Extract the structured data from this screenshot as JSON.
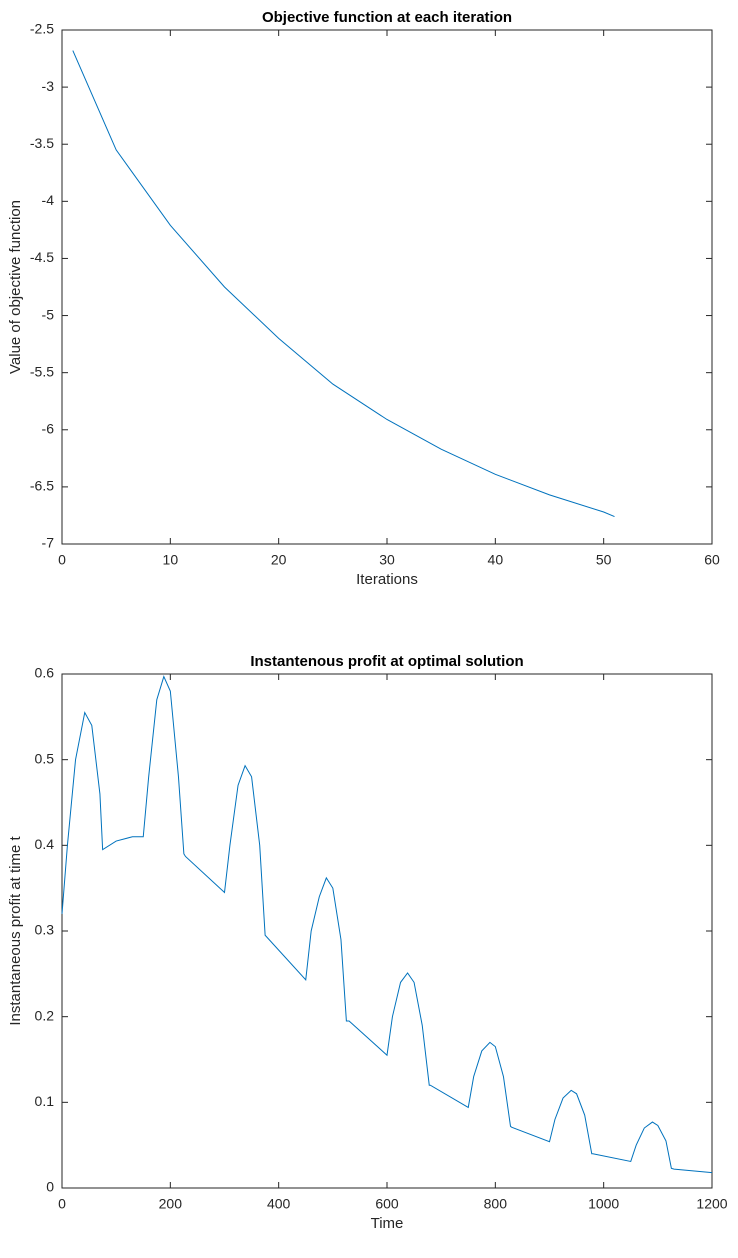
{
  "chart_data": [
    {
      "type": "line",
      "title": "Objective function at each iteration",
      "x_label": "Iterations",
      "y_label": "Value of objective function",
      "x": [
        1,
        5,
        10,
        15,
        20,
        25,
        30,
        35,
        40,
        45,
        50,
        51
      ],
      "values": [
        -2.68,
        -3.55,
        -4.21,
        -4.75,
        -5.2,
        -5.6,
        -5.91,
        -6.17,
        -6.39,
        -6.57,
        -6.72,
        -6.76
      ],
      "color": "#0072bd",
      "xlim": [
        0,
        60
      ],
      "xticks": [
        0,
        10,
        20,
        30,
        40,
        50,
        60
      ],
      "ylim": [
        -7,
        -2.5
      ],
      "yticks": [
        -7,
        -6.5,
        -6,
        -5.5,
        -5,
        -4.5,
        -4,
        -3.5,
        -3,
        -2.5
      ]
    },
    {
      "type": "line",
      "title": "Instantenous profit at optimal solution",
      "x_label": "Time",
      "y_label": "Instantaneous profit at time t",
      "x": [
        0,
        10,
        25,
        42,
        55,
        70,
        75,
        100,
        130,
        150,
        160,
        175,
        188,
        200,
        215,
        225,
        228,
        300,
        310,
        325,
        338,
        350,
        365,
        375,
        378,
        450,
        460,
        475,
        488,
        500,
        515,
        525,
        530,
        600,
        610,
        625,
        638,
        650,
        665,
        678,
        680,
        750,
        760,
        775,
        790,
        800,
        815,
        828,
        830,
        900,
        910,
        925,
        940,
        950,
        965,
        978,
        980,
        1050,
        1060,
        1075,
        1090,
        1100,
        1115,
        1125,
        1130,
        1200
      ],
      "values": [
        0.32,
        0.4,
        0.5,
        0.555,
        0.54,
        0.46,
        0.395,
        0.405,
        0.41,
        0.41,
        0.48,
        0.57,
        0.597,
        0.58,
        0.48,
        0.39,
        0.387,
        0.345,
        0.4,
        0.47,
        0.493,
        0.48,
        0.4,
        0.295,
        0.293,
        0.243,
        0.3,
        0.34,
        0.362,
        0.35,
        0.29,
        0.195,
        0.195,
        0.155,
        0.2,
        0.24,
        0.251,
        0.24,
        0.19,
        0.12,
        0.12,
        0.094,
        0.13,
        0.16,
        0.17,
        0.165,
        0.13,
        0.072,
        0.071,
        0.054,
        0.08,
        0.105,
        0.114,
        0.11,
        0.085,
        0.04,
        0.04,
        0.031,
        0.05,
        0.07,
        0.077,
        0.073,
        0.055,
        0.023,
        0.022,
        0.018
      ],
      "color": "#0072bd",
      "xlim": [
        0,
        1200
      ],
      "xticks": [
        0,
        200,
        400,
        600,
        800,
        1000,
        1200
      ],
      "ylim": [
        0,
        0.6
      ],
      "yticks": [
        0,
        0.1,
        0.2,
        0.3,
        0.4,
        0.5,
        0.6
      ]
    }
  ]
}
